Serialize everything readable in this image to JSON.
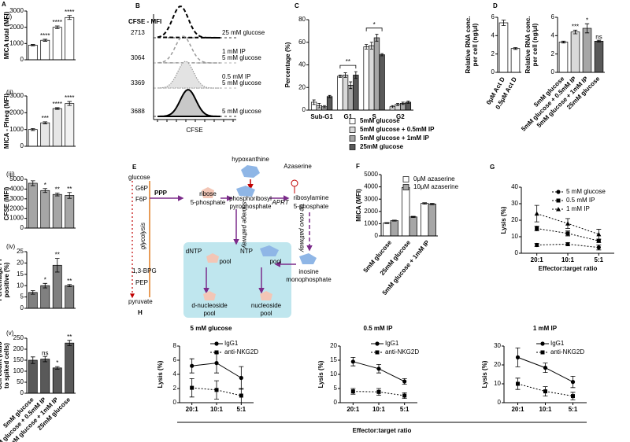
{
  "chart_data": [
    {
      "type": "bar",
      "panel": "A",
      "subpanel": "(i)",
      "ylabel": "MICA total (MFI)",
      "values": [
        900,
        1200,
        2000,
        2600
      ],
      "errors": [
        40,
        60,
        80,
        120
      ],
      "colors": [
        "#ffffff",
        "#ffffff",
        "#ffffff",
        "#ffffff"
      ],
      "significance": [
        null,
        "****",
        "****",
        "****"
      ],
      "ylim": [
        0,
        3000
      ],
      "yticks": [
        0,
        1000,
        2000,
        3000
      ]
    },
    {
      "type": "bar",
      "subpanel": "(ii)",
      "ylabel": "MICA - PIneg (MFI)",
      "values": [
        1000,
        1400,
        2250,
        2550
      ],
      "errors": [
        60,
        60,
        50,
        120
      ],
      "colors": [
        "#ffffff",
        "#e6e6e6",
        "#e6e6e6",
        "#f2f2f2"
      ],
      "significance": [
        null,
        "***",
        "****",
        "****"
      ],
      "ylim": [
        0,
        3000
      ],
      "yticks": [
        0,
        1000,
        2000,
        3000
      ]
    },
    {
      "type": "bar",
      "subpanel": "(iii)",
      "ylabel": "CFSE (MFI)",
      "values": [
        4600,
        3850,
        3450,
        3350
      ],
      "errors": [
        250,
        200,
        150,
        300
      ],
      "colors": [
        "#a6a6a6",
        "#a6a6a6",
        "#a6a6a6",
        "#a6a6a6"
      ],
      "significance": [
        null,
        "*",
        "**",
        "**"
      ],
      "ylim": [
        0,
        5000
      ],
      "yticks": [
        0,
        1000,
        2000,
        3000,
        4000,
        5000
      ]
    },
    {
      "type": "bar",
      "subpanel": "(iv)",
      "ylabel": [
        "Percentage PI",
        "positive (%)"
      ],
      "values": [
        7,
        10,
        19,
        10
      ],
      "errors": [
        0.8,
        1,
        3,
        0.5
      ],
      "colors": [
        "#808080",
        "#808080",
        "#808080",
        "#808080"
      ],
      "significance": [
        null,
        "*",
        "**",
        "**"
      ],
      "ylim": [
        0,
        25
      ],
      "yticks": [
        0,
        5,
        10,
        15,
        20,
        25
      ]
    },
    {
      "type": "bar",
      "subpanel": "(v)",
      "ylabel": [
        "Cell count (ratio",
        "to spiked cells)"
      ],
      "categories": [
        "5mM glucose",
        "5mM glucose + 0.5mM IP",
        "5mM glucose + 1mM IP",
        "25mM glucose"
      ],
      "values": [
        150,
        155,
        115,
        228
      ],
      "errors": [
        15,
        12,
        6,
        12
      ],
      "colors": [
        "#595959",
        "#595959",
        "#595959",
        "#595959"
      ],
      "significance": [
        null,
        "ns",
        "*",
        "**"
      ],
      "ylim": [
        0,
        250
      ],
      "yticks": [
        0,
        50,
        100,
        150,
        200,
        250
      ]
    },
    {
      "type": "flow-histogram",
      "panel": "B",
      "header": "CFSE - MFI",
      "xlabel": "CFSE",
      "series": [
        {
          "name": [
            "25 mM glucose"
          ],
          "mfi": 2713
        },
        {
          "name": [
            "1 mM IP",
            "5 mM glucose"
          ],
          "mfi": 3064
        },
        {
          "name": [
            "0.5 mM IP",
            "5 mM glucose"
          ],
          "mfi": 3369
        },
        {
          "name": [
            "5 mM glucose"
          ],
          "mfi": 3688
        }
      ]
    },
    {
      "type": "bar",
      "panel": "C",
      "ylabel": "Percentage (%)",
      "categories": [
        "Sub-G1",
        "G1",
        "S",
        "G2"
      ],
      "series": [
        {
          "name": "5mM glucose",
          "color": "#ffffff",
          "values": [
            7,
            30,
            56,
            3
          ],
          "errors": [
            2,
            1,
            2,
            1
          ]
        },
        {
          "name": "5mM glucose + 0.5mM IP",
          "color": "#d9d9d9",
          "values": [
            4,
            31,
            57,
            5
          ],
          "errors": [
            2,
            2,
            3,
            1
          ]
        },
        {
          "name": "5mM glucose + 1mM IP",
          "color": "#a6a6a6",
          "values": [
            3,
            22,
            64,
            6
          ],
          "errors": [
            1,
            3,
            3,
            1
          ]
        },
        {
          "name": "25mM glucose",
          "color": "#595959",
          "values": [
            12,
            31,
            49,
            7
          ],
          "errors": [
            1,
            3,
            1,
            1
          ]
        }
      ],
      "group_significance": [
        null,
        "**",
        "*",
        null
      ],
      "ylim": [
        0,
        80
      ],
      "yticks": [
        0,
        20,
        40,
        60,
        80
      ],
      "legend": "below"
    },
    {
      "type": "bar",
      "panel": "D",
      "ylabel": [
        "Relative RNA conc.",
        "per cell (ng/μl)"
      ],
      "categories": [
        "0μM Act D",
        "0.5μM Act D"
      ],
      "values": [
        5.4,
        2.6
      ],
      "errors": [
        0.3,
        0.1
      ],
      "colors": [
        "#ffffff",
        "#ffffff"
      ],
      "ylim": [
        0,
        6
      ],
      "yticks": [
        0,
        2,
        4,
        6
      ]
    },
    {
      "type": "bar",
      "ylabel": [
        "Relative RNA conc.",
        "per cell (ng/μl)"
      ],
      "categories": [
        "5mM glucose",
        "5mM glucose + 0.5mM IP",
        "5mM glucose + 1mM IP",
        "25mM glucose"
      ],
      "values": [
        3.3,
        4.4,
        4.8,
        3.4
      ],
      "errors": [
        0.1,
        0.2,
        0.5,
        0.1
      ],
      "colors": [
        "#ffffff",
        "#d9d9d9",
        "#a6a6a6",
        "#595959"
      ],
      "significance": [
        null,
        "***",
        "*",
        "ns"
      ],
      "ylim": [
        0,
        6
      ],
      "yticks": [
        0,
        2,
        4,
        6
      ]
    },
    {
      "type": "bar",
      "panel": "F",
      "ylabel": "MICA (MFI)",
      "categories": [
        "5mM glucose",
        "25mM glucose",
        "5mM glucose + 1mM IP"
      ],
      "series": [
        {
          "name": "0μM azaserine",
          "color": "#ffffff",
          "values": [
            1050,
            3950,
            2650
          ],
          "errors": [
            40,
            150,
            60
          ]
        },
        {
          "name": "10μM azaserine",
          "color": "#a6a6a6",
          "values": [
            1250,
            1550,
            2600
          ],
          "errors": [
            40,
            50,
            60
          ]
        }
      ],
      "ylim": [
        0,
        5000
      ],
      "yticks": [
        0,
        1000,
        2000,
        3000,
        4000,
        5000
      ],
      "legend": "upper right"
    },
    {
      "type": "line",
      "panel": "G",
      "ylabel": "Lysis (%)",
      "xlabel": "Effector:target ratio",
      "categories": [
        "20:1",
        "10:1",
        "5:1"
      ],
      "series": [
        {
          "name": "5 mM glucose",
          "color": "#000000",
          "marker": "circle",
          "dash": true,
          "values": [
            5,
            5.5,
            3.5
          ],
          "errors": [
            1,
            1,
            1.5
          ]
        },
        {
          "name": "0.5 mM IP",
          "color": "#000000",
          "marker": "square",
          "dash": true,
          "values": [
            15,
            12,
            7.5
          ],
          "errors": [
            1.5,
            1.5,
            1
          ]
        },
        {
          "name": "1 mM IP",
          "color": "#000000",
          "marker": "triangle",
          "dash": true,
          "values": [
            24,
            18,
            11.5
          ],
          "errors": [
            5,
            3,
            3
          ]
        }
      ],
      "ylim": [
        0,
        40
      ],
      "yticks": [
        0,
        10,
        20,
        30,
        40
      ],
      "legend": "upper right"
    },
    {
      "type": "line",
      "panel": "H",
      "title": "5 mM glucose",
      "ylabel": "Lysis (%)",
      "xlabel": "Effector:target ratio",
      "categories": [
        "20:1",
        "10:1",
        "5:1"
      ],
      "series": [
        {
          "name": "IgG1",
          "color": "#000000",
          "marker": "circle",
          "dash": false,
          "values": [
            5.2,
            5.6,
            3.5
          ],
          "errors": [
            1,
            1.4,
            1.6
          ]
        },
        {
          "name": "anti-NKG2D",
          "color": "#000000",
          "marker": "square",
          "dash": true,
          "values": [
            2.1,
            1.8,
            1.0
          ],
          "errors": [
            1.3,
            1.3,
            1.0
          ]
        }
      ],
      "ylim": [
        0,
        8
      ],
      "yticks": [
        0,
        2,
        4,
        6,
        8
      ],
      "legend": "upper right"
    },
    {
      "type": "line",
      "title": "0.5 mM IP",
      "ylabel": "Lysis (%)",
      "categories": [
        "20:1",
        "10:1",
        "5:1"
      ],
      "series": [
        {
          "name": "IgG1",
          "color": "#000000",
          "marker": "circle",
          "dash": false,
          "values": [
            14.5,
            12,
            7.5
          ],
          "errors": [
            1.5,
            1.5,
            1
          ]
        },
        {
          "name": "anti-NKG2D",
          "color": "#000000",
          "marker": "square",
          "dash": true,
          "values": [
            4,
            3.8,
            2.5
          ],
          "errors": [
            1,
            1.2,
            1
          ]
        }
      ],
      "ylim": [
        0,
        20
      ],
      "yticks": [
        0,
        5,
        10,
        15,
        20
      ],
      "legend": "upper right"
    },
    {
      "type": "line",
      "title": "1 mM IP",
      "ylabel": "Lysis (%)",
      "categories": [
        "20:1",
        "10:1",
        "5:1"
      ],
      "series": [
        {
          "name": "IgG1",
          "color": "#000000",
          "marker": "circle",
          "dash": false,
          "values": [
            24,
            18.5,
            11
          ],
          "errors": [
            5,
            2.5,
            3
          ]
        },
        {
          "name": "anti-NKG2D",
          "color": "#000000",
          "marker": "square",
          "dash": true,
          "values": [
            10,
            6,
            3.5
          ],
          "errors": [
            3,
            2.5,
            2
          ]
        }
      ],
      "ylim": [
        0,
        30
      ],
      "yticks": [
        0,
        10,
        20,
        30
      ],
      "legend": "upper right"
    }
  ],
  "diagram": {
    "panel": "E",
    "labels": [
      "glucose",
      "G6P",
      "F6P",
      "glycolysis",
      "1,3-BPG",
      "PEP",
      "pyruvate",
      "PPP",
      "ribose",
      "5-phosphate",
      "phosphoribosyl",
      "pyrophosphate",
      "hypoxanthine",
      "Azaserine",
      "APRT",
      "ribosylamine",
      "5-phosphate",
      "salvage pathway",
      "de novo pathway",
      "inosine",
      "monophosphate",
      "dNTP",
      "pool",
      "NTP",
      "pool",
      "d-nucleoside",
      "pool",
      "nucleoside",
      "pool"
    ]
  }
}
